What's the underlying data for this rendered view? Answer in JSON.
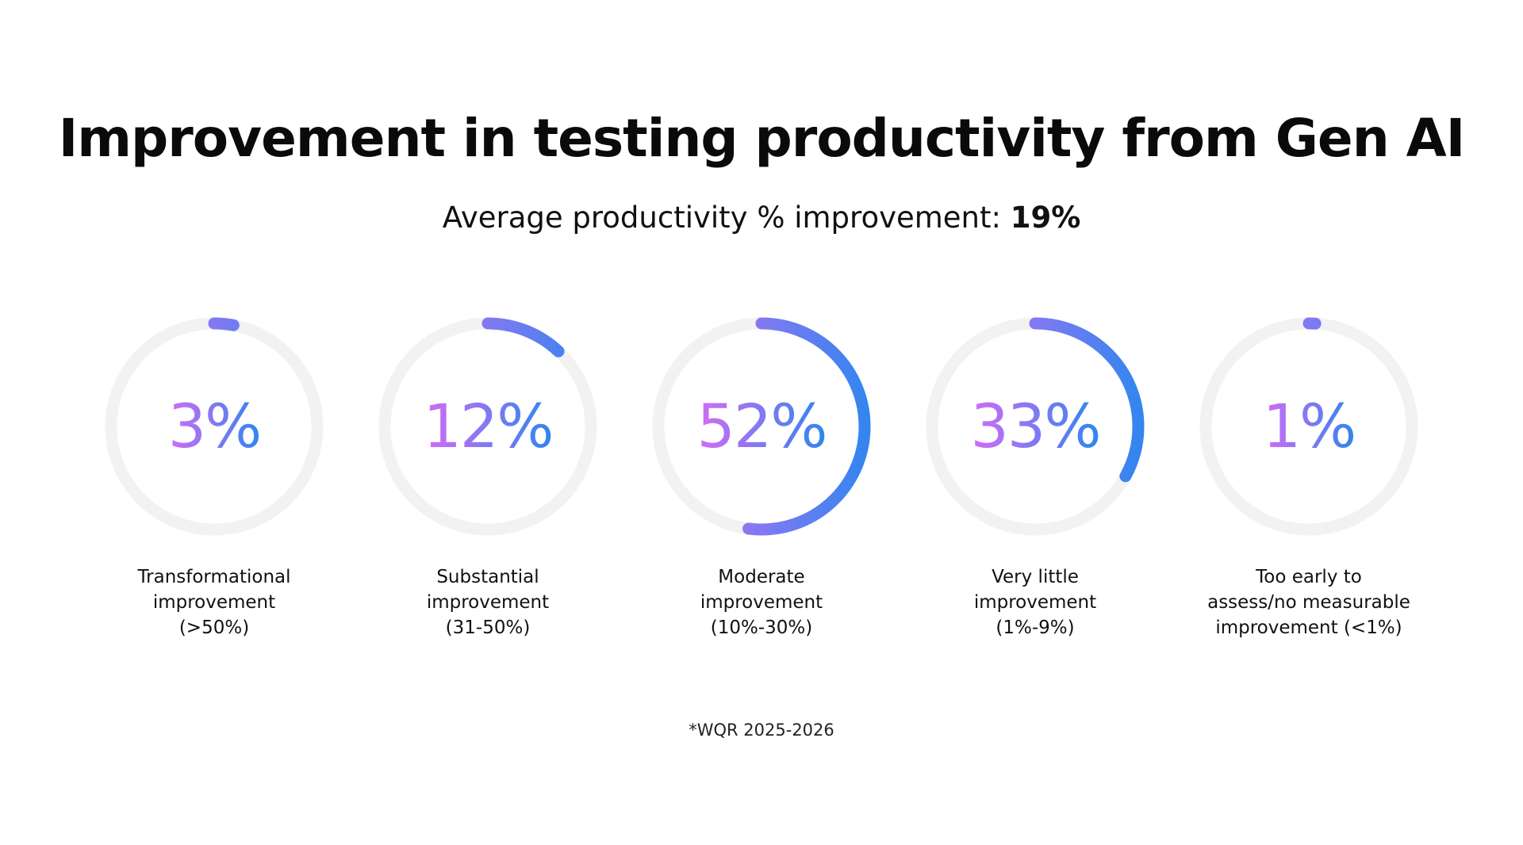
{
  "title": "Improvement in testing productivity from Gen AI",
  "subtitle": {
    "label": "Average productivity % improvement: ",
    "value": "19%"
  },
  "colors": {
    "track": "#f2f2f2",
    "gradient_start": "#d36cf5",
    "gradient_end": "#2f86ef",
    "text_dark": "#0a0a0a"
  },
  "chart_data": {
    "type": "donut",
    "title": "Improvement in testing productivity from Gen AI",
    "categories": [
      "Transformational improvement (>50%)",
      "Substantial improvement (31-50%)",
      "Moderate improvement (10%-30%)",
      "Very little improvement (1%-9%)",
      "Too early to assess/no measurable improvement (<1%)"
    ],
    "values": [
      3,
      12,
      52,
      33,
      1
    ],
    "value_labels": [
      "3%",
      "12%",
      "52%",
      "33%",
      "1%"
    ],
    "label_lines": [
      [
        "Transformational",
        "improvement",
        "(>50%)"
      ],
      [
        "Substantial",
        "improvement",
        "(31-50%)"
      ],
      [
        "Moderate",
        "improvement",
        "(10%-30%)"
      ],
      [
        "Very little",
        "improvement",
        "(1%-9%)"
      ],
      [
        "Too early to",
        "assess/no measurable",
        "improvement (<1%)"
      ]
    ]
  },
  "footnote": "*WQR 2025-2026"
}
